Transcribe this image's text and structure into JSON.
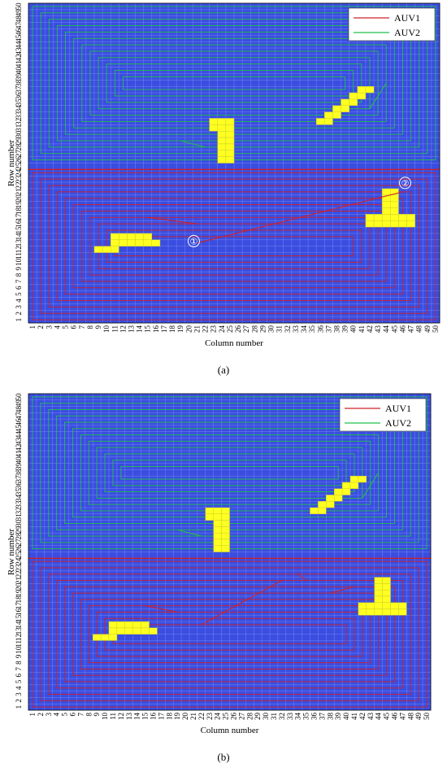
{
  "panels": [
    {
      "caption": "(a)",
      "ylabel": "Row number",
      "xlabel": "Column number",
      "legend": [
        {
          "label": "AUV1",
          "color": "#d0202a"
        },
        {
          "label": "AUV2",
          "color": "#22c04a"
        }
      ],
      "markers": [
        {
          "label": "①",
          "col": 20.6,
          "row": 13.3
        },
        {
          "label": "②",
          "col": 46.3,
          "row": 22.4
        }
      ],
      "obstacles": [
        {
          "cells": [
            [
              23,
              32
            ],
            [
              24,
              32
            ],
            [
              25,
              32
            ],
            [
              23,
              31
            ],
            [
              24,
              31
            ],
            [
              25,
              31
            ],
            [
              24,
              30
            ],
            [
              25,
              30
            ],
            [
              24,
              29
            ],
            [
              25,
              29
            ],
            [
              24,
              28
            ],
            [
              25,
              28
            ],
            [
              24,
              27
            ],
            [
              25,
              27
            ],
            [
              24,
              26
            ],
            [
              25,
              26
            ]
          ]
        },
        {
          "cells": [
            [
              36,
              32
            ],
            [
              37,
              32
            ],
            [
              37,
              33
            ],
            [
              38,
              33
            ],
            [
              38,
              34
            ],
            [
              39,
              34
            ],
            [
              39,
              35
            ],
            [
              40,
              35
            ],
            [
              40,
              36
            ],
            [
              41,
              36
            ],
            [
              41,
              37
            ],
            [
              42,
              37
            ]
          ]
        },
        {
          "cells": [
            [
              44,
              21
            ],
            [
              45,
              21
            ],
            [
              44,
              20
            ],
            [
              45,
              20
            ],
            [
              44,
              19
            ],
            [
              45,
              19
            ],
            [
              44,
              18
            ],
            [
              45,
              18
            ],
            [
              42,
              17
            ],
            [
              43,
              17
            ],
            [
              44,
              17
            ],
            [
              45,
              17
            ],
            [
              46,
              17
            ],
            [
              47,
              17
            ],
            [
              42,
              16
            ],
            [
              43,
              16
            ],
            [
              44,
              16
            ],
            [
              45,
              16
            ],
            [
              46,
              16
            ],
            [
              47,
              16
            ]
          ]
        },
        {
          "cells": [
            [
              9,
              12
            ],
            [
              10,
              12
            ],
            [
              11,
              12
            ],
            [
              11,
              13
            ],
            [
              12,
              13
            ],
            [
              13,
              13
            ],
            [
              14,
              13
            ],
            [
              15,
              13
            ],
            [
              16,
              13
            ],
            [
              11,
              14
            ],
            [
              12,
              14
            ],
            [
              13,
              14
            ],
            [
              14,
              14
            ],
            [
              15,
              14
            ]
          ]
        }
      ],
      "jumps": [
        {
          "series": "AUV1",
          "from": [
            15,
            17
          ],
          "to": [
            21,
            16
          ]
        },
        {
          "series": "AUV1",
          "from": [
            21,
            13
          ],
          "to": [
            46,
            21
          ]
        },
        {
          "series": "AUV2",
          "from": [
            19,
            29
          ],
          "to": [
            22,
            28
          ]
        },
        {
          "series": "AUV2",
          "from": [
            42,
            34
          ],
          "to": [
            44,
            38
          ]
        }
      ]
    },
    {
      "caption": "(b)",
      "ylabel": "Row number",
      "xlabel": "Column number",
      "legend": [
        {
          "label": "AUV1",
          "color": "#d0202a"
        },
        {
          "label": "AUV2",
          "color": "#22c04a"
        }
      ],
      "markers": [],
      "obstacles": [
        {
          "cells": [
            [
              23,
              32
            ],
            [
              24,
              32
            ],
            [
              25,
              32
            ],
            [
              23,
              31
            ],
            [
              24,
              31
            ],
            [
              25,
              31
            ],
            [
              24,
              30
            ],
            [
              25,
              30
            ],
            [
              24,
              29
            ],
            [
              25,
              29
            ],
            [
              24,
              28
            ],
            [
              25,
              28
            ],
            [
              24,
              27
            ],
            [
              25,
              27
            ],
            [
              24,
              26
            ],
            [
              25,
              26
            ]
          ]
        },
        {
          "cells": [
            [
              36,
              32
            ],
            [
              37,
              32
            ],
            [
              37,
              33
            ],
            [
              38,
              33
            ],
            [
              38,
              34
            ],
            [
              39,
              34
            ],
            [
              39,
              35
            ],
            [
              40,
              35
            ],
            [
              40,
              36
            ],
            [
              41,
              36
            ],
            [
              41,
              37
            ],
            [
              42,
              37
            ]
          ]
        },
        {
          "cells": [
            [
              44,
              21
            ],
            [
              45,
              21
            ],
            [
              44,
              20
            ],
            [
              45,
              20
            ],
            [
              44,
              19
            ],
            [
              45,
              19
            ],
            [
              44,
              18
            ],
            [
              45,
              18
            ],
            [
              42,
              17
            ],
            [
              43,
              17
            ],
            [
              44,
              17
            ],
            [
              45,
              17
            ],
            [
              46,
              17
            ],
            [
              47,
              17
            ],
            [
              42,
              16
            ],
            [
              43,
              16
            ],
            [
              44,
              16
            ],
            [
              45,
              16
            ],
            [
              46,
              16
            ],
            [
              47,
              16
            ]
          ]
        },
        {
          "cells": [
            [
              9,
              12
            ],
            [
              10,
              12
            ],
            [
              11,
              12
            ],
            [
              11,
              13
            ],
            [
              12,
              13
            ],
            [
              13,
              13
            ],
            [
              14,
              13
            ],
            [
              15,
              13
            ],
            [
              16,
              13
            ],
            [
              11,
              14
            ],
            [
              12,
              14
            ],
            [
              13,
              14
            ],
            [
              14,
              14
            ],
            [
              15,
              14
            ]
          ]
        }
      ],
      "jumps": [
        {
          "series": "AUV1",
          "from": [
            15,
            17
          ],
          "to": [
            19,
            16
          ]
        },
        {
          "series": "AUV1",
          "from": [
            22,
            14
          ],
          "to": [
            32,
            21
          ]
        },
        {
          "series": "AUV1",
          "from": [
            34,
            22
          ],
          "to": [
            35,
            21
          ]
        },
        {
          "series": "AUV1",
          "from": [
            38,
            19
          ],
          "to": [
            41,
            20
          ]
        },
        {
          "series": "AUV2",
          "from": [
            19,
            29
          ],
          "to": [
            22,
            28
          ]
        },
        {
          "series": "AUV2",
          "from": [
            42,
            34
          ],
          "to": [
            44,
            38
          ]
        }
      ]
    }
  ],
  "grid": {
    "cols": 50,
    "rows": 50,
    "divider_row": 25,
    "ocean_color": "#3a4de0",
    "grid_line_color": "#7486f0",
    "obstacle_color": "#ffff22",
    "obstacle_grid_color": "#c8c820",
    "x_ticks": [
      "1",
      "2",
      "3",
      "4",
      "5",
      "6",
      "7",
      "8",
      "9",
      "10",
      "11",
      "12",
      "13",
      "14",
      "15",
      "16",
      "17",
      "18",
      "19",
      "20",
      "21",
      "22",
      "23",
      "24",
      "25",
      "26",
      "27",
      "28",
      "29",
      "30",
      "31",
      "32",
      "33",
      "34",
      "35",
      "36",
      "37",
      "38",
      "39",
      "40",
      "41",
      "42",
      "43",
      "44",
      "45",
      "46",
      "47",
      "48",
      "49",
      "50"
    ],
    "y_ticks": [
      "1",
      "2",
      "3",
      "4",
      "5",
      "6",
      "7",
      "8",
      "9",
      "10",
      "11",
      "12",
      "13",
      "14",
      "15",
      "16",
      "17",
      "18",
      "19",
      "20",
      "21",
      "22",
      "23",
      "24",
      "25",
      "26",
      "27",
      "28",
      "29",
      "30",
      "31",
      "32",
      "33",
      "34",
      "35",
      "36",
      "37",
      "38",
      "39",
      "40",
      "41",
      "42",
      "43",
      "44",
      "45",
      "46",
      "47",
      "48",
      "49",
      "50"
    ]
  }
}
